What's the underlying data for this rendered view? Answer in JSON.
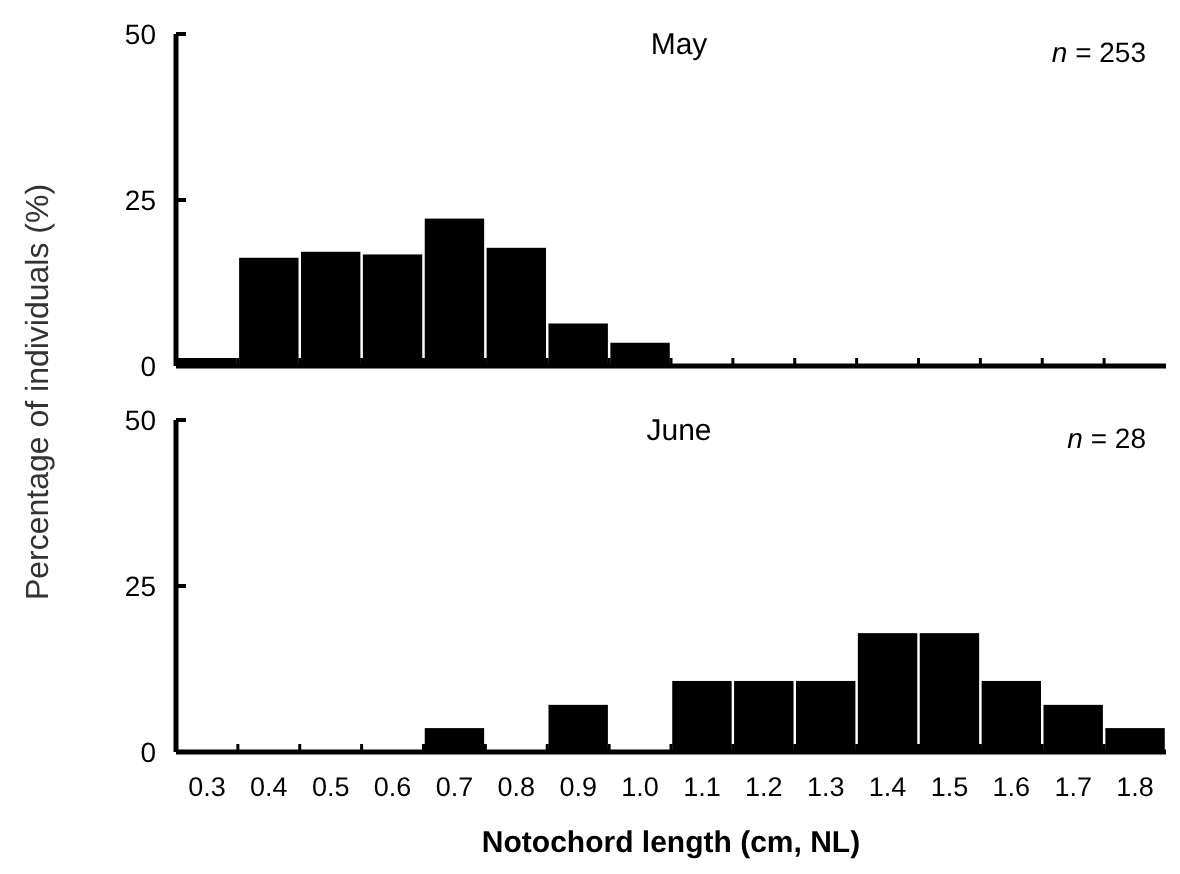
{
  "chart_data": [
    {
      "type": "bar",
      "title": "May",
      "ylabel": "Percentage of individuals (%)",
      "annotations": [
        "n = 253"
      ],
      "categories": [
        "0.3",
        "0.4",
        "0.5",
        "0.6",
        "0.7",
        "0.8",
        "0.9",
        "1.0",
        "1.1",
        "1.2",
        "1.3",
        "1.4",
        "1.5",
        "1.6",
        "1.7",
        "1.8"
      ],
      "values": [
        1.2,
        16.3,
        17.2,
        16.8,
        22.2,
        17.8,
        6.4,
        3.5,
        0,
        0,
        0,
        0,
        0,
        0,
        0,
        0
      ],
      "color": "#000000",
      "ylim": [
        0,
        50
      ],
      "yticks": [
        0,
        25,
        50
      ],
      "tick_labels": "y",
      "grid": false
    },
    {
      "type": "bar",
      "title": "June",
      "xlabel": "Notochord length (cm, NL)",
      "annotations": [
        "n = 28"
      ],
      "categories": [
        "0.3",
        "0.4",
        "0.5",
        "0.6",
        "0.7",
        "0.8",
        "0.9",
        "1.0",
        "1.1",
        "1.2",
        "1.3",
        "1.4",
        "1.5",
        "1.6",
        "1.7",
        "1.8"
      ],
      "values": [
        0,
        0,
        0,
        0,
        3.6,
        0,
        7.1,
        0,
        10.7,
        10.7,
        10.7,
        17.9,
        17.9,
        10.7,
        7.1,
        3.6
      ],
      "color": "#000000",
      "ylim": [
        0,
        50
      ],
      "yticks": [
        0,
        25,
        50
      ],
      "grid": false
    }
  ]
}
